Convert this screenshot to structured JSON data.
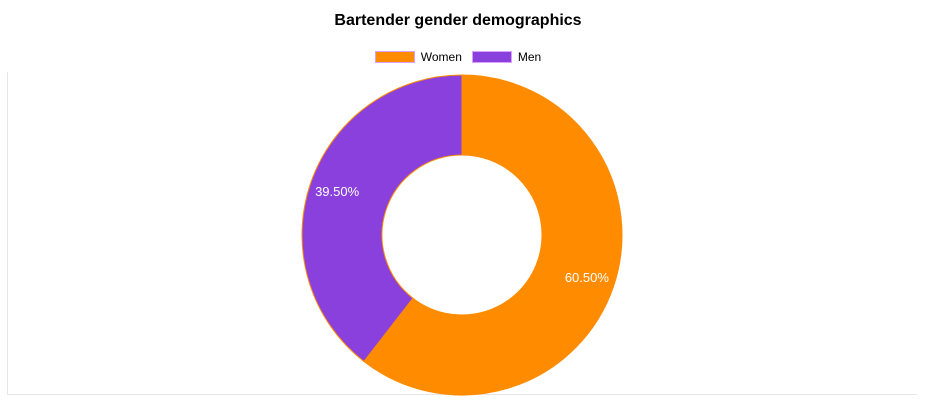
{
  "chart_data": {
    "type": "pie",
    "title": "Bartender gender demographics",
    "donut": true,
    "legend_position": "top",
    "categories": [
      "Women",
      "Men"
    ],
    "values": [
      60.5,
      39.5
    ],
    "value_labels": [
      "60.50%",
      "39.50%"
    ],
    "colors": [
      "#ff8c00",
      "#8a40dd"
    ],
    "slice_border_color": "#ff8c00"
  }
}
